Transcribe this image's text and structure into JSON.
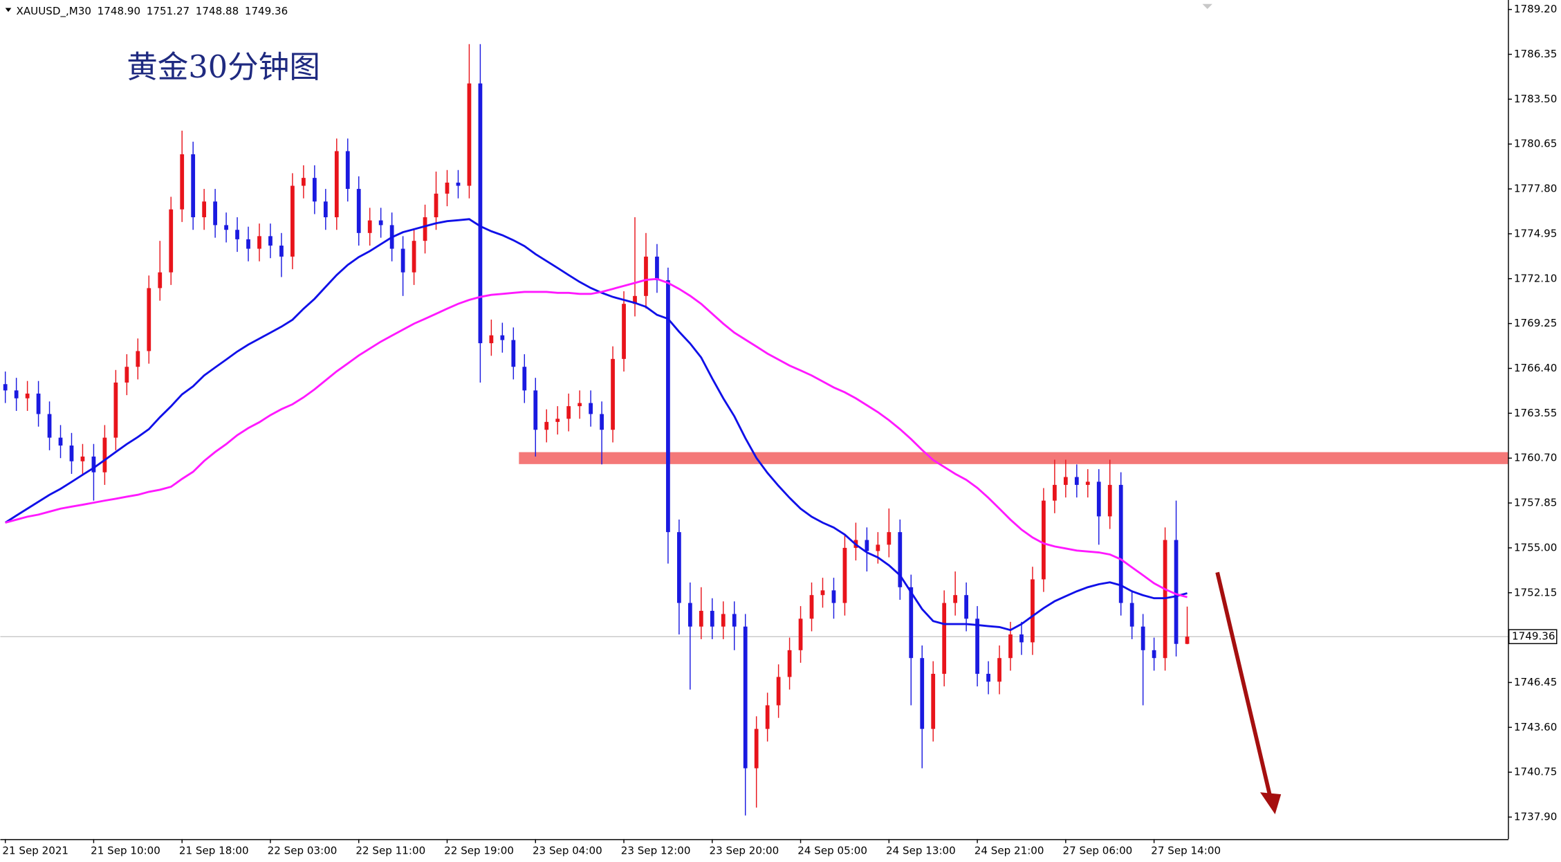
{
  "chart_data": {
    "type": "candlestick",
    "title": "黄金30分钟图",
    "header": {
      "symbol": "XAUUSD_,M30",
      "ohlc": [
        "1748.90",
        "1751.27",
        "1748.88",
        "1749.36"
      ]
    },
    "categories": [
      "21 Sep 2021",
      null,
      null,
      null,
      null,
      null,
      null,
      null,
      "21 Sep 10:00",
      null,
      null,
      null,
      null,
      null,
      null,
      null,
      "21 Sep 18:00",
      null,
      null,
      null,
      null,
      null,
      null,
      null,
      "22 Sep 03:00",
      null,
      null,
      null,
      null,
      null,
      null,
      null,
      "22 Sep 11:00",
      null,
      null,
      null,
      null,
      null,
      null,
      null,
      "22 Sep 19:00",
      null,
      null,
      null,
      null,
      null,
      null,
      null,
      "23 Sep 04:00",
      null,
      null,
      null,
      null,
      null,
      null,
      null,
      "23 Sep 12:00",
      null,
      null,
      null,
      null,
      null,
      null,
      null,
      "23 Sep 20:00",
      null,
      null,
      null,
      null,
      null,
      null,
      null,
      "24 Sep 05:00",
      null,
      null,
      null,
      null,
      null,
      null,
      null,
      "24 Sep 13:00",
      null,
      null,
      null,
      null,
      null,
      null,
      null,
      "24 Sep 21:00",
      null,
      null,
      null,
      null,
      null,
      null,
      null,
      "27 Sep 06:00",
      null,
      null,
      null,
      null,
      null,
      null,
      null,
      "27 Sep 14:00",
      null,
      null,
      null
    ],
    "open": [
      1765.4,
      1765.0,
      1764.5,
      1764.8,
      1763.5,
      1762.0,
      1761.5,
      1760.5,
      1760.8,
      1759.8,
      1762.0,
      1765.5,
      1766.5,
      1767.5,
      1771.5,
      1772.5,
      1776.5,
      1780.0,
      1776.0,
      1777.0,
      1775.5,
      1775.2,
      1774.6,
      1774.0,
      1774.8,
      1774.2,
      1773.5,
      1778.0,
      1778.5,
      1777.0,
      1776.0,
      1780.2,
      1777.8,
      1775.0,
      1775.8,
      1775.5,
      1774.0,
      1772.5,
      1774.5,
      1776.0,
      1777.5,
      1778.2,
      1778.0,
      1784.5,
      1768.0,
      1768.5,
      1768.2,
      1766.5,
      1765.0,
      1762.5,
      1763.0,
      1763.2,
      1764.0,
      1764.2,
      1763.5,
      1762.5,
      1767.0,
      1770.5,
      1771.0,
      1773.5,
      1772.0,
      1756.0,
      1751.5,
      1750.0,
      1751.0,
      1750.0,
      1750.8,
      1750.0,
      1741.0,
      1743.5,
      1745.0,
      1746.8,
      1748.5,
      1750.5,
      1752.0,
      1752.3,
      1751.5,
      1755.0,
      1755.5,
      1754.8,
      1755.2,
      1756.0,
      1752.5,
      1748.0,
      1743.5,
      1747.0,
      1751.5,
      1752.0,
      1750.5,
      1747.0,
      1746.5,
      1748.0,
      1749.5,
      1749.0,
      1753.0,
      1758.0,
      1759.0,
      1759.5,
      1759.0,
      1759.2,
      1757.0,
      1759.0,
      1751.5,
      1750.0,
      1748.5,
      1748.0,
      1755.5,
      1748.9
    ],
    "high": [
      1766.2,
      1765.8,
      1765.6,
      1765.6,
      1764.3,
      1762.8,
      1762.3,
      1761.6,
      1761.6,
      1762.8,
      1766.3,
      1767.3,
      1768.3,
      1772.3,
      1774.5,
      1777.3,
      1781.5,
      1780.8,
      1777.8,
      1777.8,
      1776.3,
      1776.0,
      1775.4,
      1775.6,
      1775.6,
      1775.0,
      1778.8,
      1779.3,
      1779.3,
      1777.8,
      1781.0,
      1781.0,
      1778.6,
      1776.6,
      1776.6,
      1776.3,
      1774.8,
      1775.3,
      1776.8,
      1778.9,
      1779.0,
      1779.0,
      1787.0,
      1787.0,
      1769.5,
      1769.3,
      1769.0,
      1767.3,
      1765.8,
      1763.8,
      1764.0,
      1764.8,
      1765.0,
      1765.0,
      1764.3,
      1767.8,
      1771.3,
      1776.0,
      1775.0,
      1774.3,
      1772.8,
      1756.8,
      1752.8,
      1752.5,
      1751.8,
      1751.6,
      1751.6,
      1750.8,
      1744.3,
      1745.8,
      1747.6,
      1749.3,
      1751.3,
      1752.8,
      1753.1,
      1753.1,
      1755.8,
      1756.6,
      1756.3,
      1756.0,
      1757.5,
      1756.8,
      1753.3,
      1748.8,
      1747.8,
      1752.3,
      1753.5,
      1752.8,
      1751.3,
      1747.8,
      1748.8,
      1750.3,
      1750.3,
      1753.8,
      1758.8,
      1760.6,
      1760.6,
      1760.3,
      1760.0,
      1760.0,
      1760.6,
      1759.8,
      1752.3,
      1750.8,
      1749.3,
      1756.3,
      1758.0,
      1751.27
    ],
    "low": [
      1764.2,
      1763.7,
      1763.7,
      1762.7,
      1761.2,
      1760.7,
      1759.7,
      1759.7,
      1758.0,
      1759.0,
      1761.2,
      1764.7,
      1765.7,
      1766.7,
      1770.7,
      1771.7,
      1775.7,
      1775.2,
      1775.2,
      1774.7,
      1774.4,
      1773.8,
      1773.2,
      1773.2,
      1773.4,
      1772.2,
      1772.7,
      1777.2,
      1776.2,
      1775.2,
      1775.2,
      1777.0,
      1774.2,
      1774.2,
      1774.7,
      1773.2,
      1771.0,
      1771.7,
      1773.7,
      1775.2,
      1776.7,
      1777.2,
      1777.2,
      1765.5,
      1767.2,
      1767.4,
      1765.7,
      1764.2,
      1760.8,
      1761.7,
      1762.2,
      1762.4,
      1763.2,
      1762.7,
      1760.3,
      1761.7,
      1766.2,
      1769.7,
      1770.2,
      1771.2,
      1754.0,
      1749.5,
      1746.0,
      1749.2,
      1749.2,
      1749.2,
      1748.5,
      1738.0,
      1738.5,
      1742.7,
      1744.2,
      1746.0,
      1747.7,
      1749.7,
      1751.2,
      1750.5,
      1750.7,
      1754.2,
      1753.5,
      1754.0,
      1754.4,
      1751.7,
      1745.0,
      1741.0,
      1742.7,
      1746.2,
      1750.7,
      1749.7,
      1746.2,
      1745.7,
      1745.7,
      1747.2,
      1748.2,
      1748.2,
      1752.2,
      1757.2,
      1758.2,
      1758.2,
      1758.2,
      1755.2,
      1756.2,
      1750.7,
      1749.2,
      1745.0,
      1747.2,
      1747.2,
      1748.1,
      1748.88
    ],
    "close": [
      1765.0,
      1764.5,
      1764.8,
      1763.5,
      1762.0,
      1761.5,
      1760.5,
      1760.8,
      1759.8,
      1762.0,
      1765.5,
      1766.5,
      1767.5,
      1771.5,
      1772.5,
      1776.5,
      1780.0,
      1776.0,
      1777.0,
      1775.5,
      1775.2,
      1774.6,
      1774.0,
      1774.8,
      1774.2,
      1773.5,
      1778.0,
      1778.5,
      1777.0,
      1776.0,
      1780.2,
      1777.8,
      1775.0,
      1775.8,
      1775.5,
      1774.0,
      1772.5,
      1774.5,
      1776.0,
      1777.5,
      1778.2,
      1778.0,
      1784.5,
      1768.0,
      1768.5,
      1768.2,
      1766.5,
      1765.0,
      1762.5,
      1763.0,
      1763.2,
      1764.0,
      1764.2,
      1763.5,
      1762.5,
      1767.0,
      1770.5,
      1771.0,
      1773.5,
      1772.0,
      1756.0,
      1751.5,
      1750.0,
      1751.0,
      1750.0,
      1750.8,
      1750.0,
      1741.0,
      1743.5,
      1745.0,
      1746.8,
      1748.5,
      1750.5,
      1752.0,
      1752.3,
      1751.5,
      1755.0,
      1755.5,
      1754.8,
      1755.2,
      1756.0,
      1752.5,
      1748.0,
      1743.5,
      1747.0,
      1751.5,
      1752.0,
      1750.5,
      1747.0,
      1746.5,
      1748.0,
      1749.5,
      1749.0,
      1753.0,
      1758.0,
      1759.0,
      1759.5,
      1759.0,
      1759.2,
      1757.0,
      1759.0,
      1751.5,
      1750.0,
      1748.5,
      1748.0,
      1755.5,
      1748.9,
      1749.36
    ],
    "up_color": "#e8141b",
    "down_color": "#1a1ae0",
    "series": [
      {
        "type": "line",
        "color": "#1010e8",
        "values": [
          1756.6,
          1757.05,
          1757.49,
          1757.93,
          1758.37,
          1758.75,
          1759.19,
          1759.64,
          1760.08,
          1760.58,
          1761.09,
          1761.59,
          1762.04,
          1762.54,
          1763.3,
          1763.99,
          1764.75,
          1765.26,
          1765.95,
          1766.46,
          1766.96,
          1767.47,
          1767.91,
          1768.29,
          1768.67,
          1769.05,
          1769.49,
          1770.19,
          1770.82,
          1771.58,
          1772.33,
          1772.97,
          1773.47,
          1773.85,
          1774.29,
          1774.73,
          1775.05,
          1775.24,
          1775.43,
          1775.62,
          1775.75,
          1775.81,
          1775.88,
          1775.43,
          1775.11,
          1774.86,
          1774.54,
          1774.17,
          1773.66,
          1773.22,
          1772.78,
          1772.33,
          1771.89,
          1771.51,
          1771.2,
          1770.94,
          1770.75,
          1770.56,
          1770.31,
          1769.8,
          1769.55,
          1768.73,
          1767.98,
          1767.09,
          1765.76,
          1764.5,
          1763.36,
          1761.97,
          1760.71,
          1759.76,
          1758.94,
          1758.18,
          1757.49,
          1756.98,
          1756.6,
          1756.29,
          1755.84,
          1755.21,
          1754.71,
          1754.39,
          1753.89,
          1753.26,
          1752.18,
          1751.11,
          1750.35,
          1750.16,
          1750.16,
          1750.16,
          1750.1,
          1750.03,
          1749.97,
          1749.78,
          1750.16,
          1750.67,
          1751.17,
          1751.61,
          1751.93,
          1752.24,
          1752.5,
          1752.69,
          1752.81,
          1752.62,
          1752.24,
          1751.99,
          1751.8,
          1751.8,
          1751.93,
          1752.12
        ]
      },
      {
        "type": "line",
        "color": "#ff19ff",
        "values": [
          1756.6,
          1756.79,
          1756.98,
          1757.11,
          1757.3,
          1757.49,
          1757.62,
          1757.74,
          1757.87,
          1758.0,
          1758.12,
          1758.25,
          1758.37,
          1758.56,
          1758.69,
          1758.88,
          1759.38,
          1759.83,
          1760.52,
          1761.09,
          1761.59,
          1762.16,
          1762.61,
          1762.98,
          1763.43,
          1763.81,
          1764.12,
          1764.56,
          1765.07,
          1765.64,
          1766.21,
          1766.71,
          1767.22,
          1767.66,
          1768.1,
          1768.48,
          1768.86,
          1769.24,
          1769.55,
          1769.87,
          1770.19,
          1770.5,
          1770.75,
          1770.94,
          1771.07,
          1771.13,
          1771.2,
          1771.26,
          1771.26,
          1771.26,
          1771.2,
          1771.2,
          1771.13,
          1771.13,
          1771.26,
          1771.45,
          1771.64,
          1771.83,
          1772.02,
          1772.08,
          1771.83,
          1771.45,
          1771.01,
          1770.5,
          1769.87,
          1769.24,
          1768.67,
          1768.23,
          1767.79,
          1767.34,
          1766.96,
          1766.58,
          1766.27,
          1765.95,
          1765.57,
          1765.19,
          1764.88,
          1764.5,
          1764.06,
          1763.62,
          1763.11,
          1762.54,
          1761.91,
          1761.22,
          1760.58,
          1760.14,
          1759.7,
          1759.32,
          1758.81,
          1758.18,
          1757.49,
          1756.79,
          1756.16,
          1755.66,
          1755.28,
          1755.09,
          1754.96,
          1754.83,
          1754.77,
          1754.71,
          1754.58,
          1754.27,
          1753.76,
          1753.26,
          1752.75,
          1752.37,
          1752.06,
          1751.87
        ]
      }
    ],
    "zone": {
      "value": 1760.7,
      "color": "#f47878"
    },
    "current_price": {
      "value": 1749.36,
      "label": "1749.36"
    },
    "ylim": [
      1736.5,
      1789.8
    ],
    "yticks": [
      {
        "value": 1789.2,
        "label": "1789.20"
      },
      {
        "value": 1786.35,
        "label": "1786.35"
      },
      {
        "value": 1783.5,
        "label": "1783.50"
      },
      {
        "value": 1780.65,
        "label": "1780.65"
      },
      {
        "value": 1777.8,
        "label": "1777.80"
      },
      {
        "value": 1774.95,
        "label": "1774.95"
      },
      {
        "value": 1772.1,
        "label": "1772.10"
      },
      {
        "value": 1769.25,
        "label": "1769.25"
      },
      {
        "value": 1766.4,
        "label": "1766.40"
      },
      {
        "value": 1763.55,
        "label": "1763.55"
      },
      {
        "value": 1760.7,
        "label": "1760.70"
      },
      {
        "value": 1757.85,
        "label": "1757.85"
      },
      {
        "value": 1755,
        "label": "1755.00"
      },
      {
        "value": 1752.15,
        "label": "1752.15"
      },
      {
        "value": 1746.45,
        "label": "1746.45"
      },
      {
        "value": 1743.6,
        "label": "1743.60"
      },
      {
        "value": 1740.75,
        "label": "1740.75"
      },
      {
        "value": 1737.9,
        "label": "1737.90"
      }
    ]
  }
}
